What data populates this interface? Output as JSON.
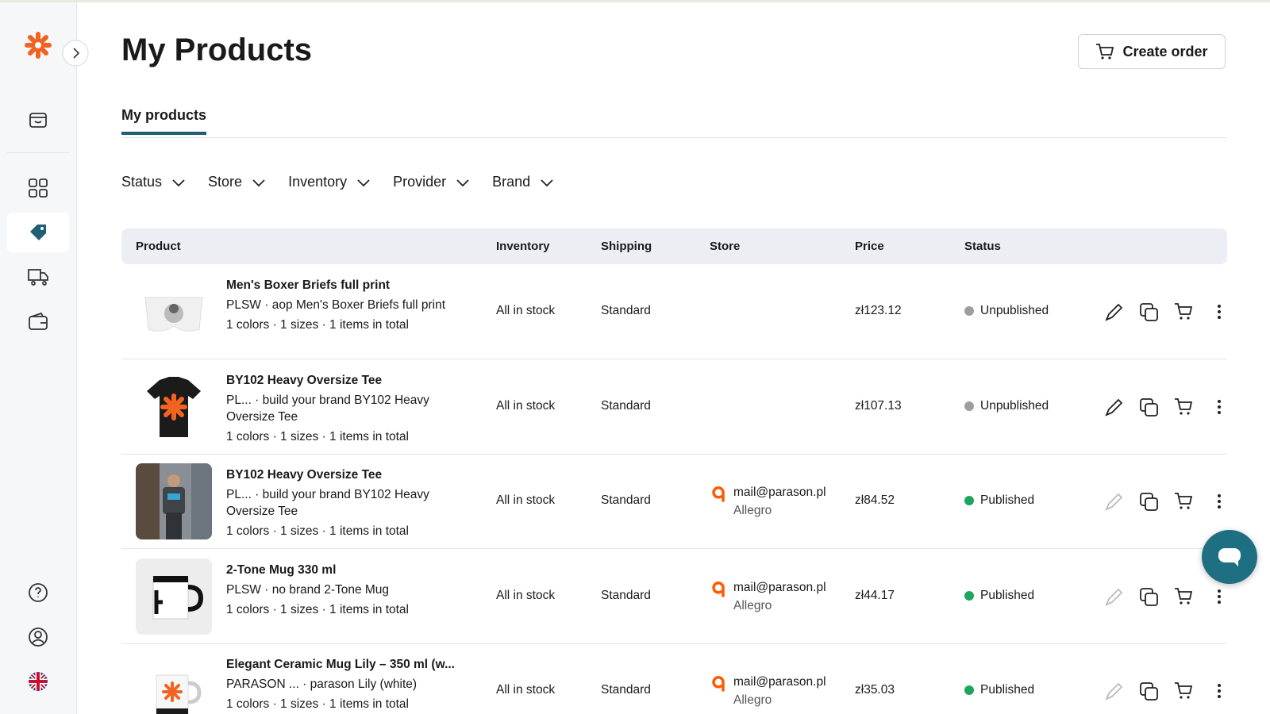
{
  "header": {
    "title": "My Products",
    "create_order": "Create order"
  },
  "tabs": [
    "My products"
  ],
  "filters": [
    "Status",
    "Store",
    "Inventory",
    "Provider",
    "Brand"
  ],
  "table": {
    "columns": [
      "Product",
      "Inventory",
      "Shipping",
      "Store",
      "Price",
      "Status"
    ],
    "rows": [
      {
        "name": "Men's Boxer Briefs full print",
        "details": "PLSW · aop Men's Boxer Briefs full print",
        "variants": "1 colors · 1 sizes · 1 items in total",
        "inventory": "All in stock",
        "shipping": "Standard",
        "price": "zł123.12",
        "status": "Unpublished",
        "status_color": "#9e9e9e",
        "image": "boxer"
      },
      {
        "name": "BY102 Heavy Oversize Tee",
        "details": "PL... · build your brand BY102 Heavy Oversize Tee",
        "variants": "1 colors · 1 sizes · 1 items in total",
        "inventory": "All in stock",
        "shipping": "Standard",
        "price": "zł107.13",
        "status": "Unpublished",
        "status_color": "#9e9e9e",
        "image": "tee"
      },
      {
        "name": "BY102 Heavy Oversize Tee",
        "details": "PL... · build your brand BY102 Heavy Oversize Tee",
        "variants": "1 colors · 1 sizes · 1 items in total",
        "inventory": "All in stock",
        "shipping": "Standard",
        "store_email": "mail@parason.pl",
        "store_platform": "Allegro",
        "price": "zł84.52",
        "status": "Published",
        "status_color": "#1fa55c",
        "image": "photo"
      },
      {
        "name": "2-Tone Mug 330 ml",
        "details": "PLSW · no brand 2-Tone Mug",
        "variants": "1 colors · 1 sizes · 1 items in total",
        "inventory": "All in stock",
        "shipping": "Standard",
        "store_email": "mail@parason.pl",
        "store_platform": "Allegro",
        "price": "zł44.17",
        "status": "Published",
        "status_color": "#1fa55c",
        "image": "mug"
      },
      {
        "name": "Elegant Ceramic Mug Lily – 350 ml (w...",
        "details": "PARASON ... · parason Lily (white)",
        "variants": "1 colors · 1 sizes · 1 items in total",
        "inventory": "All in stock",
        "shipping": "Standard",
        "store_email": "mail@parason.pl",
        "store_platform": "Allegro",
        "price": "zł35.03",
        "status": "Published",
        "status_color": "#1fa55c",
        "image": "mug2"
      }
    ]
  }
}
